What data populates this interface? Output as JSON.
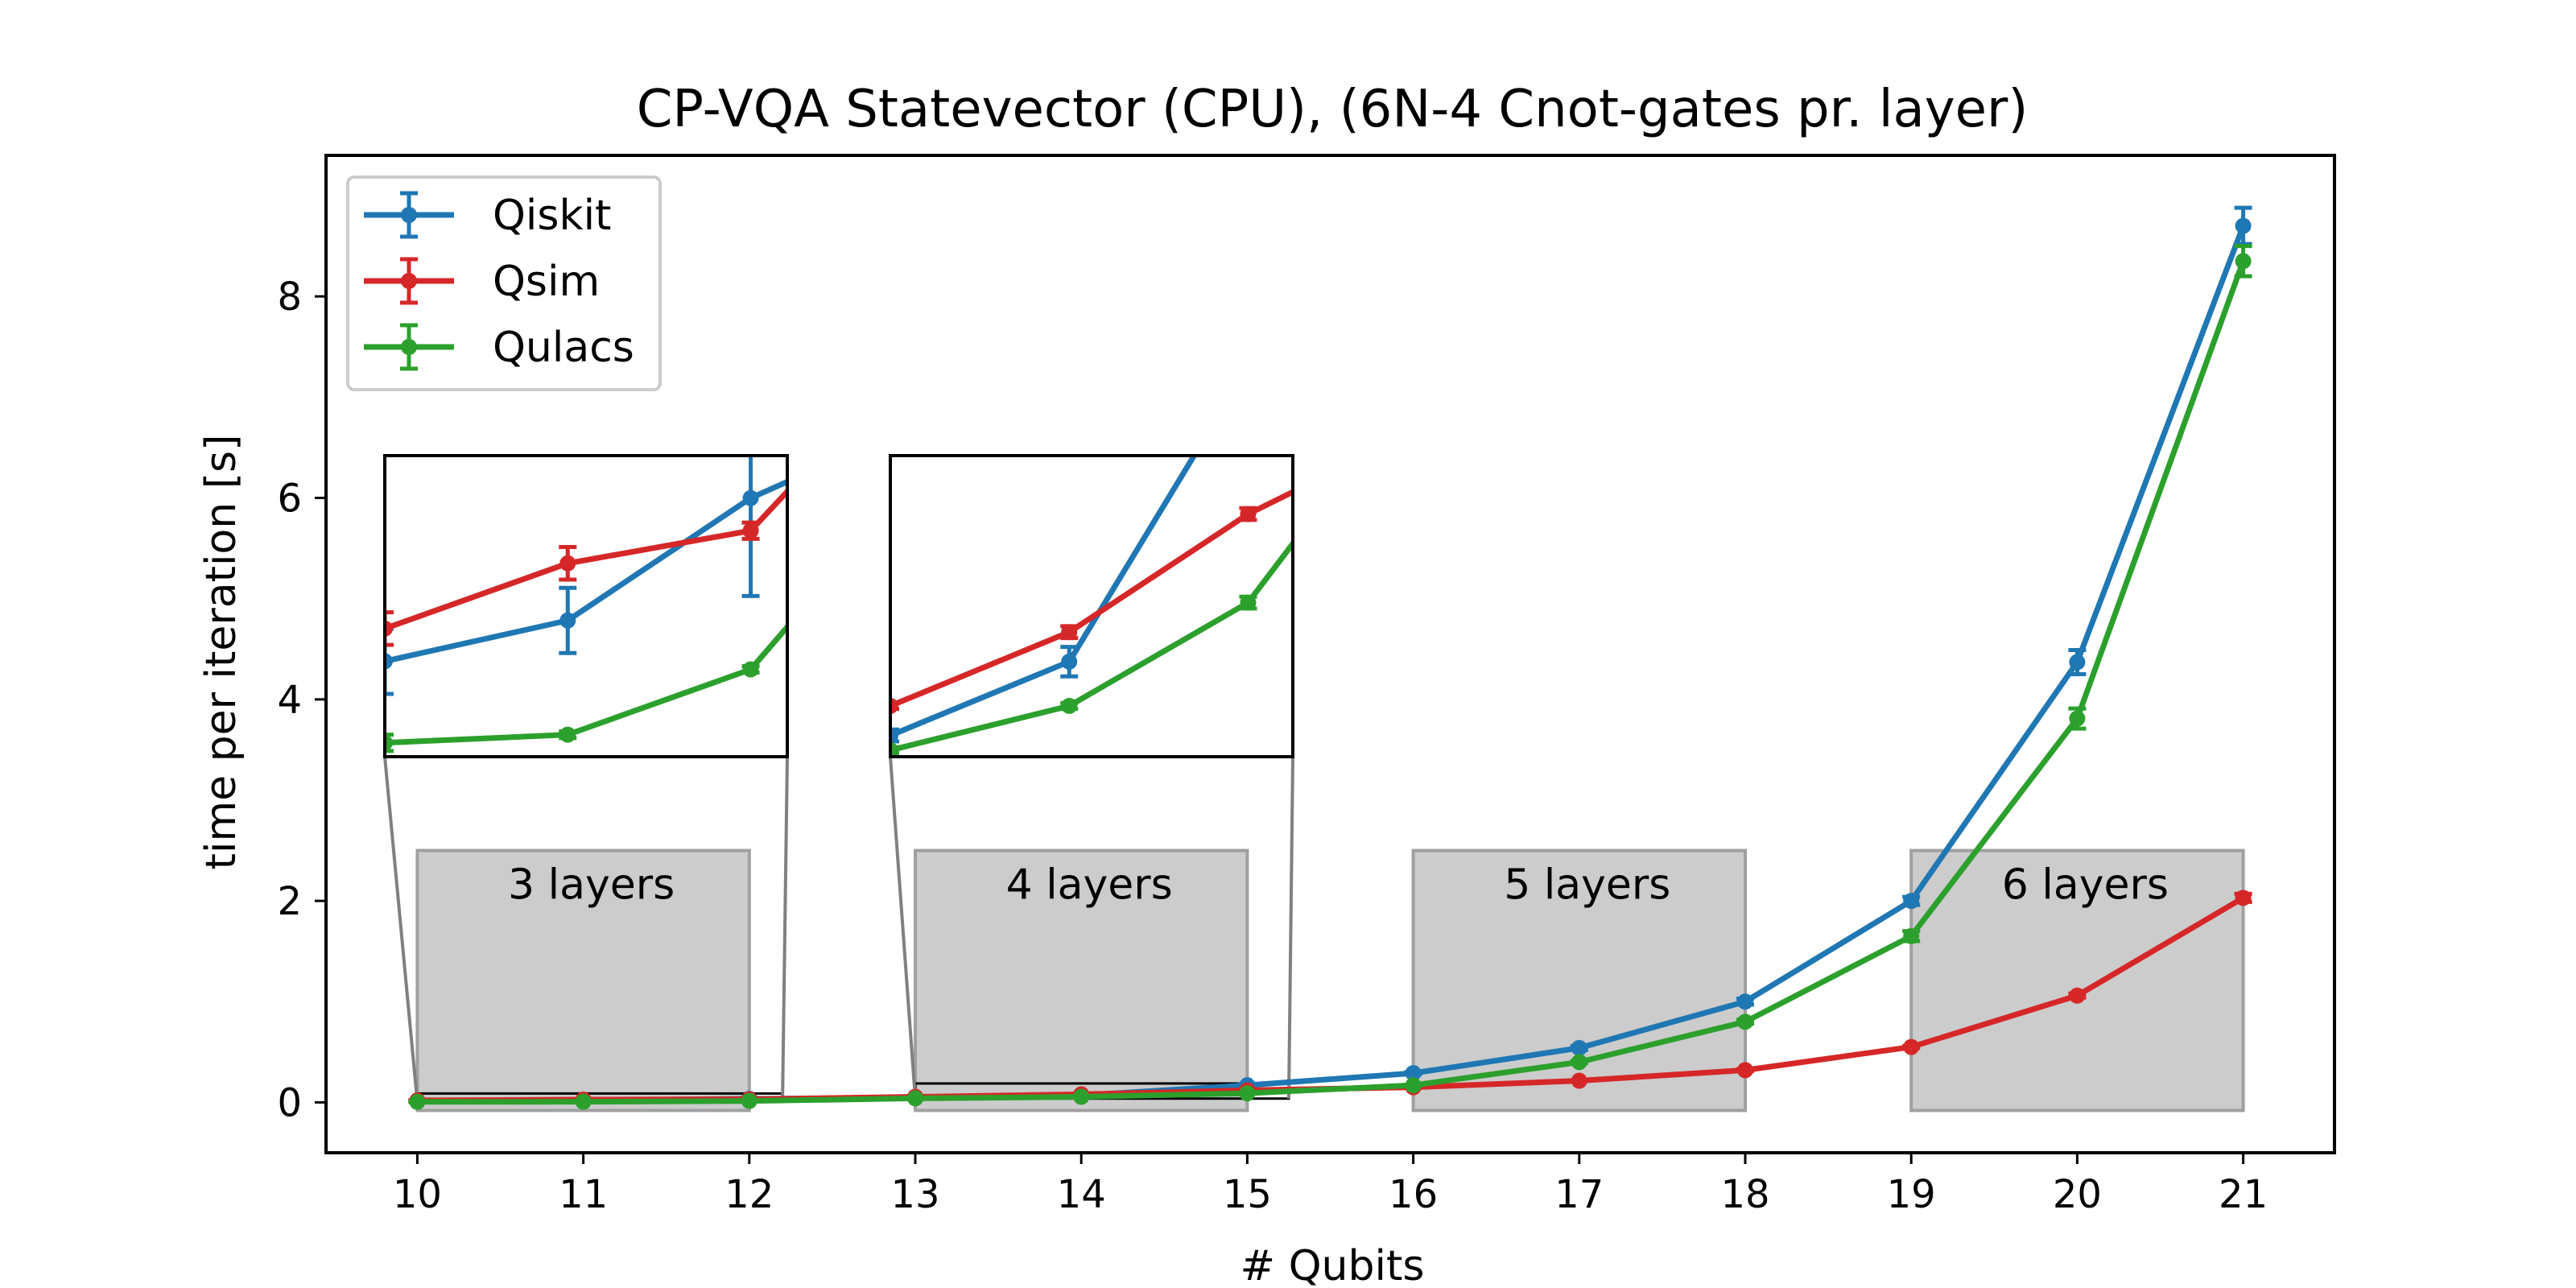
{
  "chart_data": {
    "type": "line",
    "title": "CP-VQA Statevector (CPU),  (6N-4 Cnot-gates pr. layer)",
    "xlabel": "# Qubits",
    "ylabel": "time per iteration [s]",
    "xlim": [
      9.45,
      21.55
    ],
    "ylim": [
      -0.5,
      9.4
    ],
    "x": [
      10,
      11,
      12,
      13,
      14,
      15,
      16,
      17,
      18,
      19,
      20,
      21
    ],
    "xticks": [
      "10",
      "11",
      "12",
      "13",
      "14",
      "15",
      "16",
      "17",
      "18",
      "19",
      "20",
      "21"
    ],
    "yticks": [
      "0",
      "2",
      "4",
      "6",
      "8"
    ],
    "legend": {
      "position": "top-left"
    },
    "grid": false,
    "series": [
      {
        "name": "Qiskit",
        "color": "#1f77b4",
        "values": [
          0.015,
          0.02,
          0.035,
          0.045,
          0.07,
          0.17,
          0.29,
          0.54,
          1.0,
          2.0,
          4.37,
          8.7
        ],
        "errors": [
          0.004,
          0.004,
          0.012,
          0.002,
          0.005,
          0.01,
          0.01,
          0.02,
          0.03,
          0.04,
          0.12,
          0.18
        ]
      },
      {
        "name": "Qsim",
        "color": "#d62728",
        "values": [
          0.019,
          0.027,
          0.031,
          0.055,
          0.08,
          0.12,
          0.15,
          0.215,
          0.32,
          0.55,
          1.06,
          2.03
        ],
        "errors": [
          0.002,
          0.002,
          0.001,
          0.001,
          0.002,
          0.002,
          0.005,
          0.005,
          0.01,
          0.01,
          0.02,
          0.04
        ]
      },
      {
        "name": "Qulacs",
        "color": "#2ca02c",
        "values": [
          0.005,
          0.006,
          0.014,
          0.04,
          0.055,
          0.09,
          0.17,
          0.4,
          0.8,
          1.65,
          3.81,
          8.35
        ],
        "errors": [
          0.001,
          0.0004,
          0.0004,
          0.001,
          0.001,
          0.002,
          0.005,
          0.01,
          0.02,
          0.05,
          0.1,
          0.15
        ]
      }
    ],
    "regions": [
      {
        "label": "3 layers",
        "x": [
          10,
          12
        ]
      },
      {
        "label": "4 layers",
        "x": [
          13,
          15
        ]
      },
      {
        "label": "5 layers",
        "x": [
          16,
          18
        ]
      },
      {
        "label": "6 layers",
        "x": [
          19,
          21
        ]
      }
    ],
    "insets": [
      {
        "name": "inset-3-layers",
        "xlim": [
          10,
          12.2
        ],
        "ylim": [
          0.0033,
          0.0402
        ]
      },
      {
        "name": "inset-4-layers",
        "xlim": [
          13,
          15.25
        ],
        "ylim": [
          0.0378,
          0.1398
        ]
      }
    ]
  }
}
